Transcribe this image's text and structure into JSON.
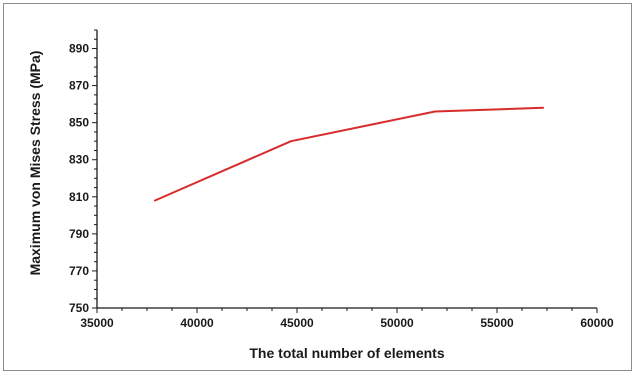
{
  "chart_data": {
    "type": "line",
    "title": "",
    "xlabel": "The total number of elements",
    "ylabel": "Maximum von Mises Stress (MPa)",
    "xlim": [
      35000,
      60000
    ],
    "ylim": [
      750,
      900
    ],
    "xticks": [
      35000,
      40000,
      45000,
      50000,
      55000,
      60000
    ],
    "yticks": [
      750,
      770,
      790,
      810,
      830,
      850,
      870,
      890
    ],
    "grid": false,
    "legend": "none",
    "series": [
      {
        "color": "#d92b2b",
        "x": [
          37900,
          44700,
          51900,
          57300
        ],
        "y": [
          808,
          840,
          856,
          858
        ]
      }
    ]
  }
}
